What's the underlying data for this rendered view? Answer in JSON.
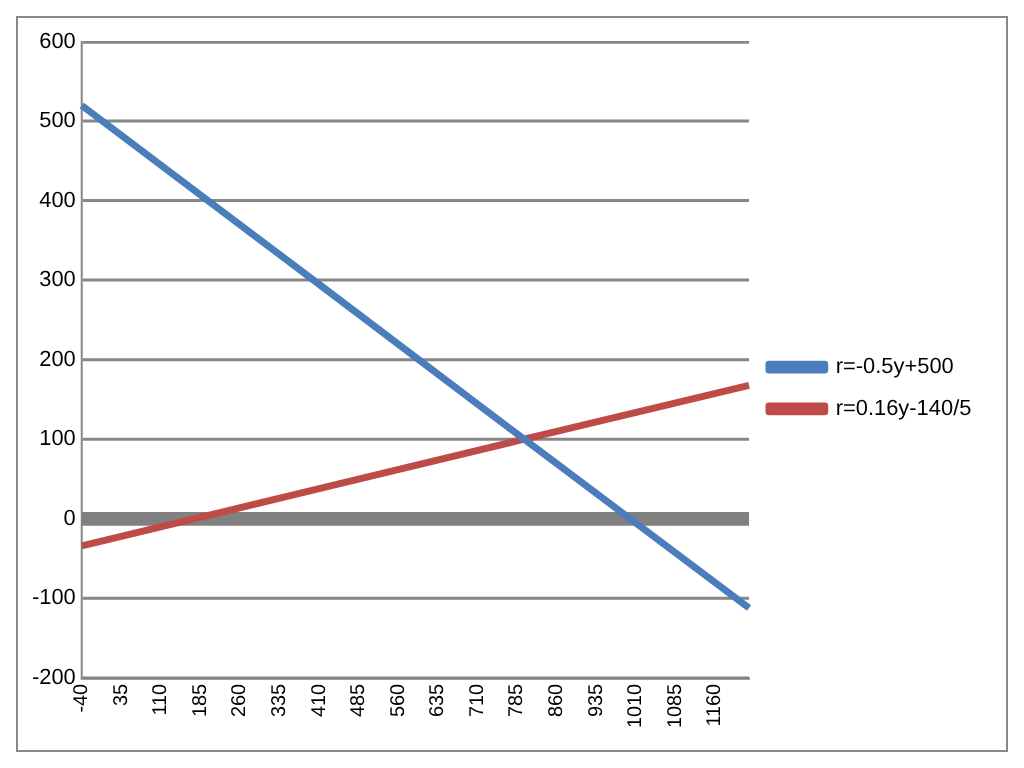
{
  "chart_data": {
    "type": "line",
    "x": [
      -40,
      410,
      785,
      1225
    ],
    "series": [
      {
        "name": "r=-0.5y+500",
        "color": "#4a7ebb",
        "values": [
          520,
          295,
          107,
          -112
        ]
      },
      {
        "name": "r=0.16y-140/5",
        "color": "#be4b48",
        "values": [
          -34,
          38,
          98,
          168
        ]
      }
    ],
    "xlim": [
      -40,
      1225
    ],
    "xticks": [
      -40,
      35,
      110,
      185,
      260,
      335,
      410,
      485,
      560,
      635,
      710,
      785,
      860,
      935,
      1010,
      1085,
      1160
    ],
    "ylim": [
      -200,
      600
    ],
    "yticks": [
      -200,
      -100,
      0,
      100,
      200,
      300,
      400,
      500,
      600
    ],
    "ref_lines": [
      {
        "axis": "y",
        "value": 0,
        "color": "#808080"
      }
    ],
    "grid": "y",
    "legend": "right",
    "marker": "none",
    "line_style": "solid"
  }
}
